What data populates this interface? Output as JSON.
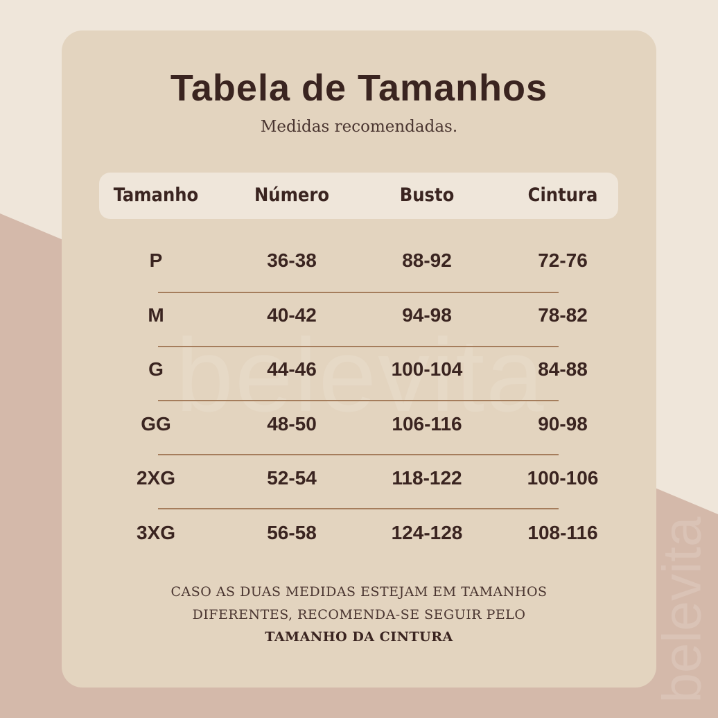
{
  "title": "Tabela de Tamanhos",
  "subtitle": "Medidas recomendadas.",
  "watermark": "belevita",
  "colors": {
    "background": "#efe6da",
    "accent_shape": "#d4b9aa",
    "card": "#e3d4bf",
    "text": "#3a2420",
    "divider": "#a57d5c"
  },
  "table": {
    "headers": [
      "Tamanho",
      "Número",
      "Busto",
      "Cintura"
    ],
    "rows": [
      [
        "P",
        "36-38",
        "88-92",
        "72-76"
      ],
      [
        "M",
        "40-42",
        "94-98",
        "78-82"
      ],
      [
        "G",
        "44-46",
        "100-104",
        "84-88"
      ],
      [
        "GG",
        "48-50",
        "106-116",
        "90-98"
      ],
      [
        "2XG",
        "52-54",
        "118-122",
        "100-106"
      ],
      [
        "3XG",
        "56-58",
        "124-128",
        "108-116"
      ]
    ]
  },
  "note": {
    "line1": "CASO AS DUAS MEDIDAS ESTEJAM EM TAMANHOS",
    "line2": "DIFERENTES, RECOMENDA-SE SEGUIR PELO",
    "line3": "TAMANHO DA CINTURA"
  }
}
